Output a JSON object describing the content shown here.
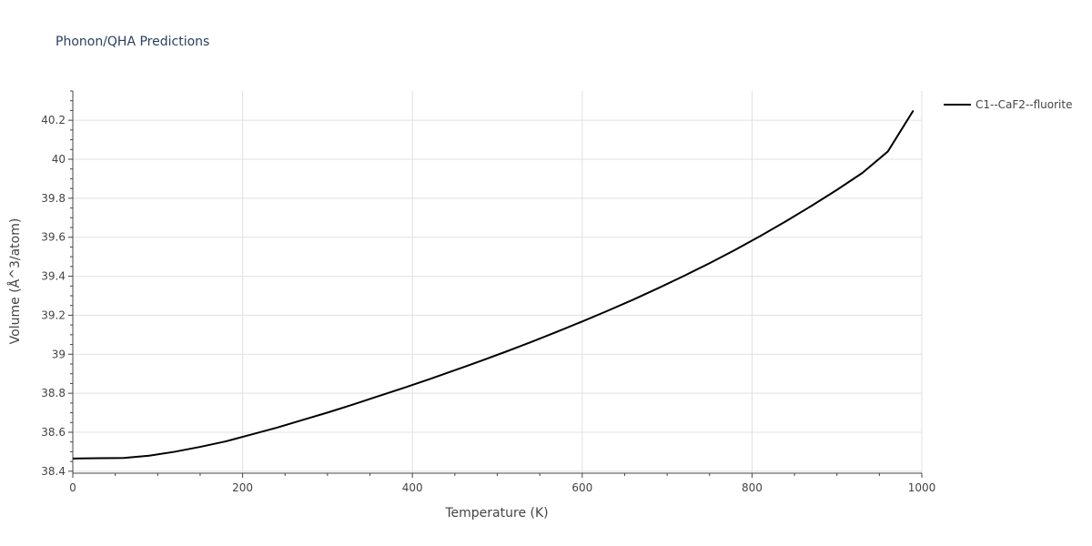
{
  "chart_data": {
    "type": "line",
    "title": "Phonon/QHA Predictions",
    "xlabel": "Temperature (K)",
    "ylabel": "Volume (Å^3/atom)",
    "xlim": [
      0,
      1000
    ],
    "ylim": [
      38.39,
      40.35
    ],
    "x_ticks": [
      0,
      200,
      400,
      600,
      800,
      1000
    ],
    "x_tick_labels": [
      "0",
      "200",
      "400",
      "600",
      "800",
      "1000"
    ],
    "y_ticks": [
      38.4,
      38.6,
      38.8,
      39,
      39.2,
      39.4,
      39.6,
      39.8,
      40,
      40.2
    ],
    "y_tick_labels": [
      "38.4",
      "38.6",
      "38.8",
      "39",
      "39.2",
      "39.4",
      "39.6",
      "39.8",
      "40",
      "40.2"
    ],
    "grid": true,
    "legend_position": "top-right",
    "series": [
      {
        "name": "C1--CaF2--fluorite",
        "color": "#000000",
        "x": [
          0,
          10,
          30,
          60,
          90,
          120,
          150,
          180,
          210,
          240,
          270,
          300,
          330,
          360,
          390,
          420,
          450,
          480,
          510,
          540,
          570,
          600,
          630,
          660,
          690,
          720,
          750,
          780,
          810,
          840,
          870,
          900,
          930,
          960,
          990
        ],
        "y": [
          38.465,
          38.466,
          38.467,
          38.468,
          38.48,
          38.5,
          38.525,
          38.553,
          38.588,
          38.623,
          38.662,
          38.701,
          38.742,
          38.785,
          38.828,
          38.872,
          38.918,
          38.965,
          39.013,
          39.063,
          39.115,
          39.168,
          39.223,
          39.28,
          39.34,
          39.402,
          39.467,
          39.535,
          39.607,
          39.682,
          39.761,
          39.843,
          39.93,
          40.04,
          40.25
        ]
      }
    ]
  }
}
